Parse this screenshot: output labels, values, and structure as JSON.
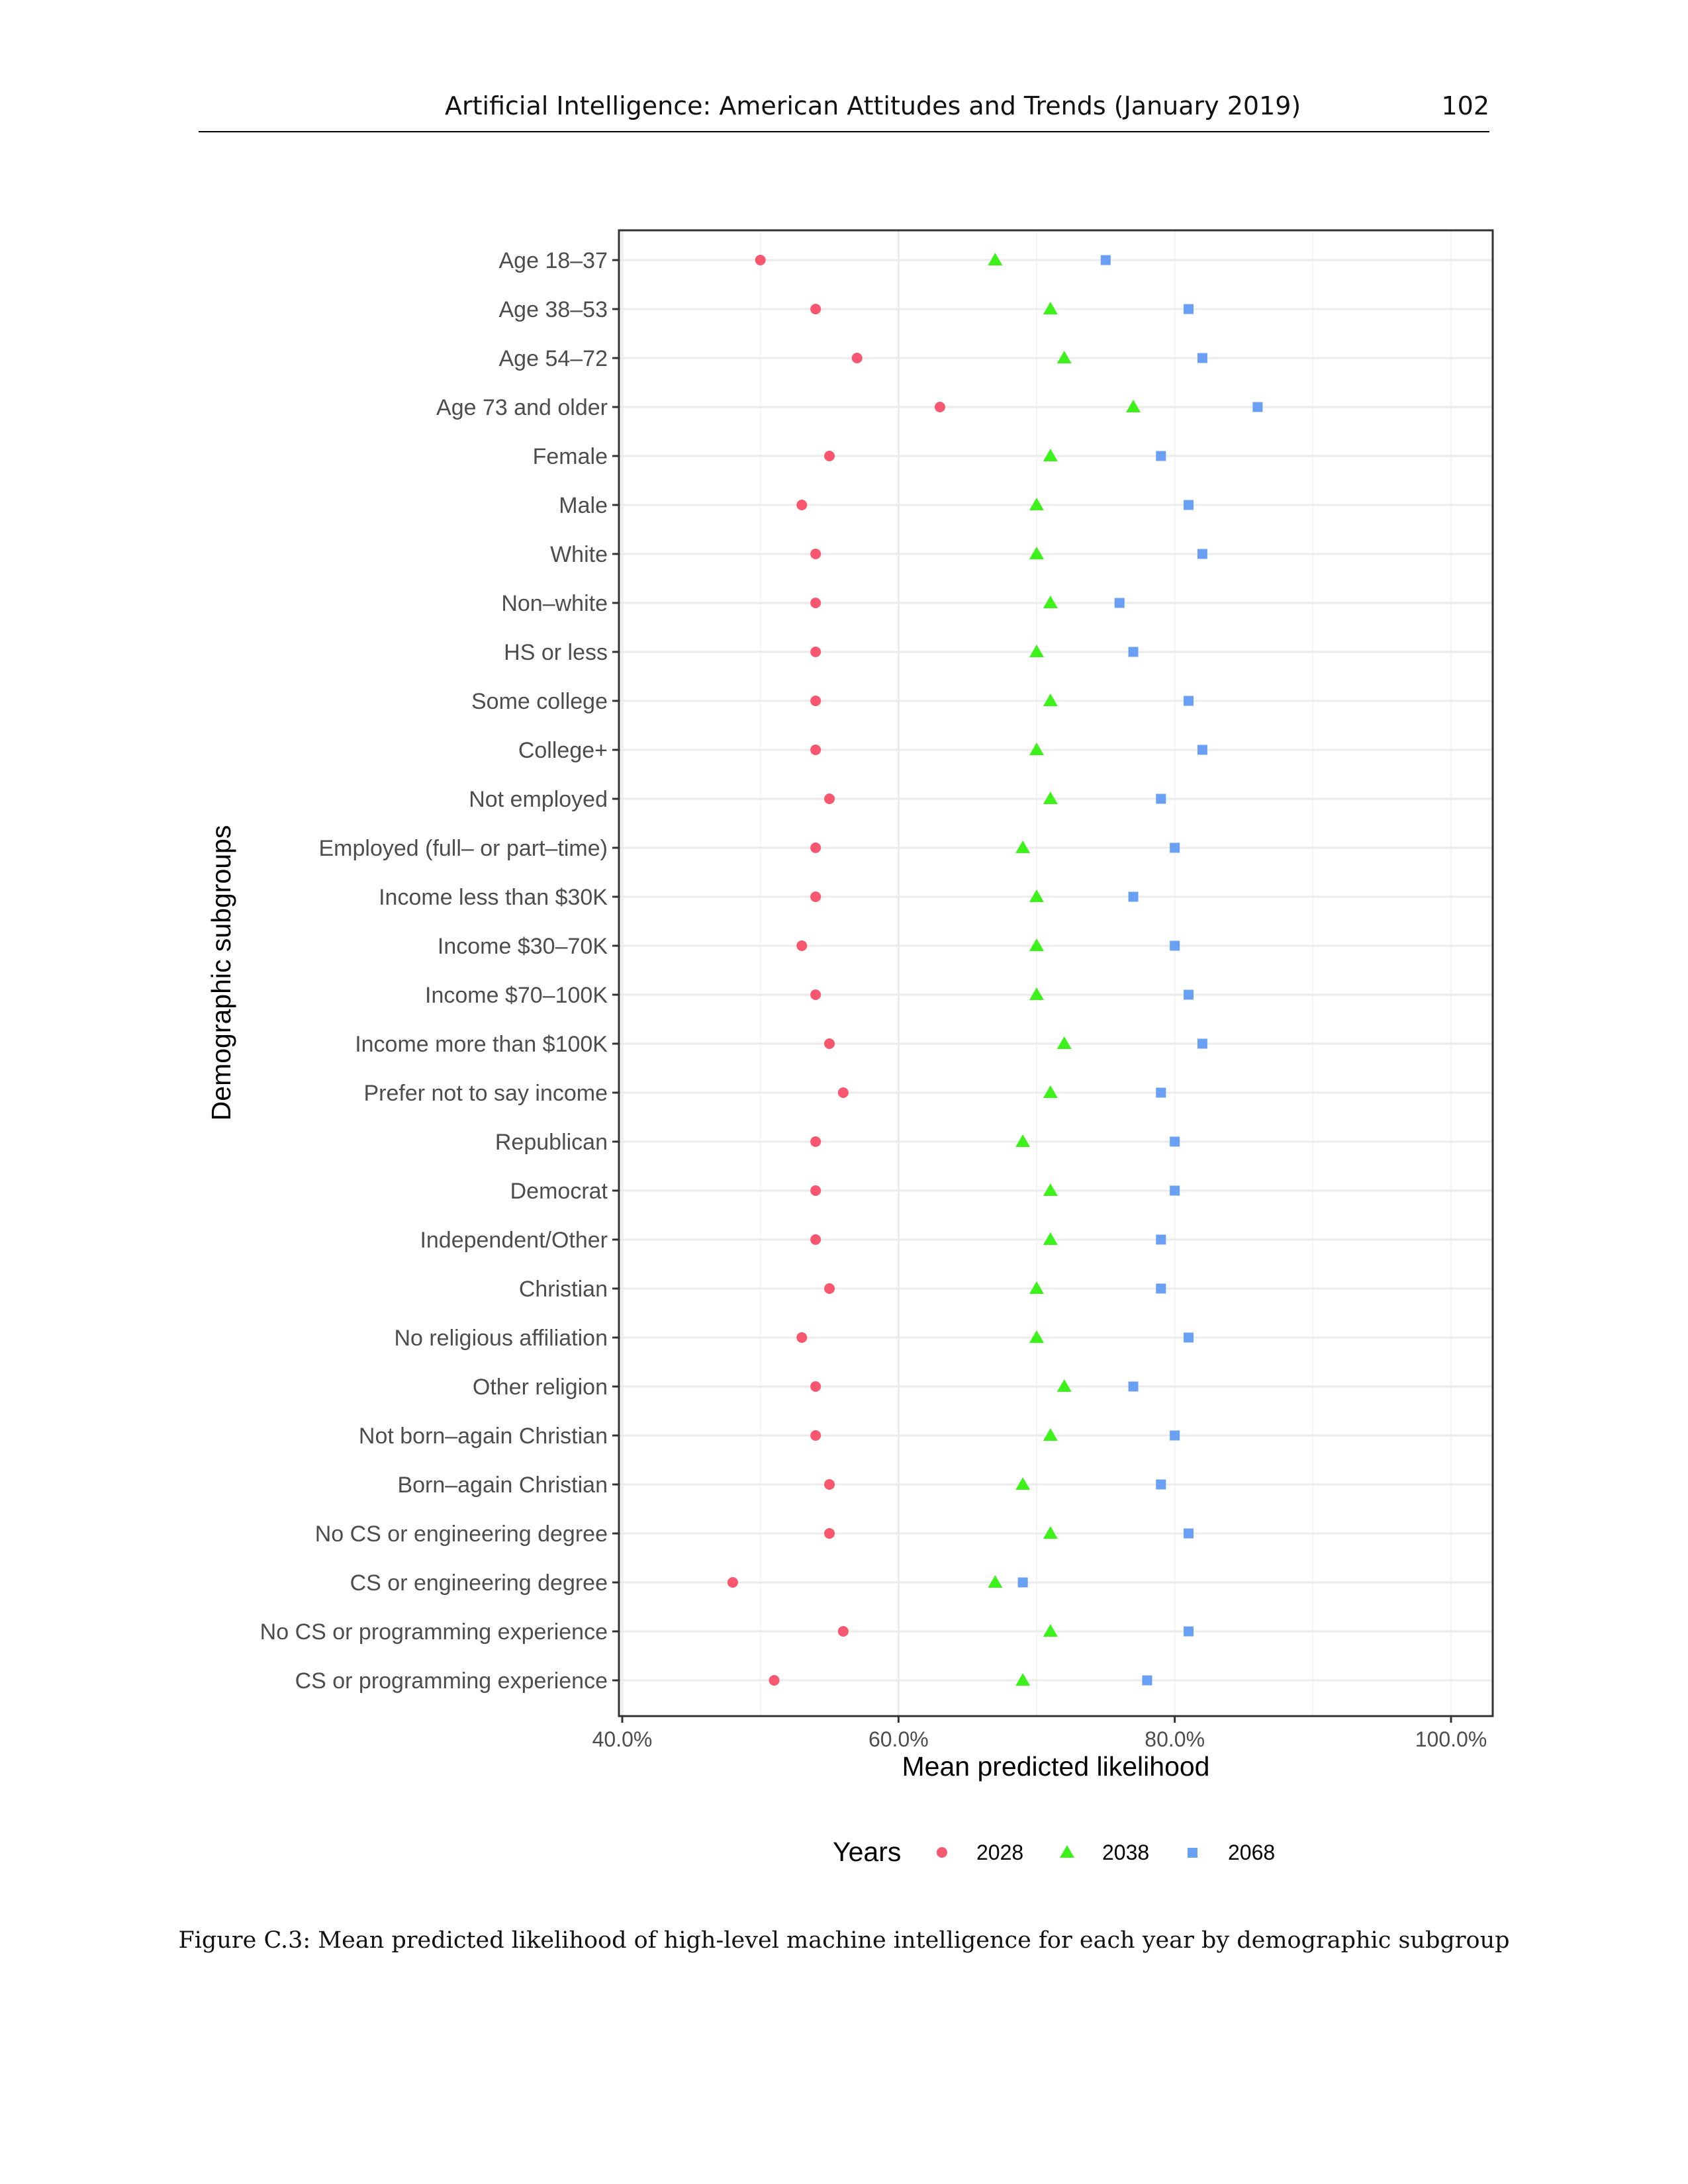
{
  "header": {
    "title": "Artificial Intelligence: American Attitudes and Trends (January 2019)",
    "page_number": "102"
  },
  "caption": "Figure C.3: Mean predicted likelihood of high-level machine intelligence for each year by demographic subgroup",
  "colors": {
    "y2028": "#f8576f",
    "y2038": "#3df21a",
    "y2068": "#6aa0f3"
  },
  "chart_data": {
    "type": "scatter",
    "title": "",
    "xlabel": "Mean predicted likelihood",
    "ylabel": "Demographic subgroups",
    "xlim": [
      0.4,
      1.0
    ],
    "xticks": [
      0.4,
      0.6,
      0.8,
      1.0
    ],
    "xtick_labels": [
      "40.0%",
      "60.0%",
      "80.0%",
      "100.0%"
    ],
    "grid": true,
    "legend": {
      "title": "Years",
      "position": "bottom"
    },
    "categories": [
      "Age 18–37",
      "Age 38–53",
      "Age 54–72",
      "Age 73 and older",
      "Female",
      "Male",
      "White",
      "Non–white",
      "HS or less",
      "Some college",
      "College+",
      "Not employed",
      "Employed (full– or part–time)",
      "Income less than $30K",
      "Income $30–70K",
      "Income $70–100K",
      "Income more than $100K",
      "Prefer not to say income",
      "Republican",
      "Democrat",
      "Independent/Other",
      "Christian",
      "No religious affiliation",
      "Other religion",
      "Not born–again Christian",
      "Born–again Christian",
      "No CS or engineering degree",
      "CS or engineering degree",
      "No CS or programming experience",
      "CS or programming experience"
    ],
    "series": [
      {
        "name": "2028",
        "marker": "circle",
        "values": [
          0.5,
          0.54,
          0.57,
          0.63,
          0.55,
          0.53,
          0.54,
          0.54,
          0.54,
          0.54,
          0.54,
          0.55,
          0.54,
          0.54,
          0.53,
          0.54,
          0.55,
          0.56,
          0.54,
          0.54,
          0.54,
          0.55,
          0.53,
          0.54,
          0.54,
          0.55,
          0.55,
          0.48,
          0.56,
          0.51
        ]
      },
      {
        "name": "2038",
        "marker": "triangle",
        "values": [
          0.67,
          0.71,
          0.72,
          0.77,
          0.71,
          0.7,
          0.7,
          0.71,
          0.7,
          0.71,
          0.7,
          0.71,
          0.69,
          0.7,
          0.7,
          0.7,
          0.72,
          0.71,
          0.69,
          0.71,
          0.71,
          0.7,
          0.7,
          0.72,
          0.71,
          0.69,
          0.71,
          0.67,
          0.71,
          0.69
        ]
      },
      {
        "name": "2068",
        "marker": "square",
        "values": [
          0.75,
          0.81,
          0.82,
          0.86,
          0.79,
          0.81,
          0.82,
          0.76,
          0.77,
          0.81,
          0.82,
          0.79,
          0.8,
          0.77,
          0.8,
          0.81,
          0.82,
          0.79,
          0.8,
          0.8,
          0.79,
          0.79,
          0.81,
          0.77,
          0.8,
          0.79,
          0.81,
          0.69,
          0.81,
          0.78
        ]
      }
    ]
  }
}
